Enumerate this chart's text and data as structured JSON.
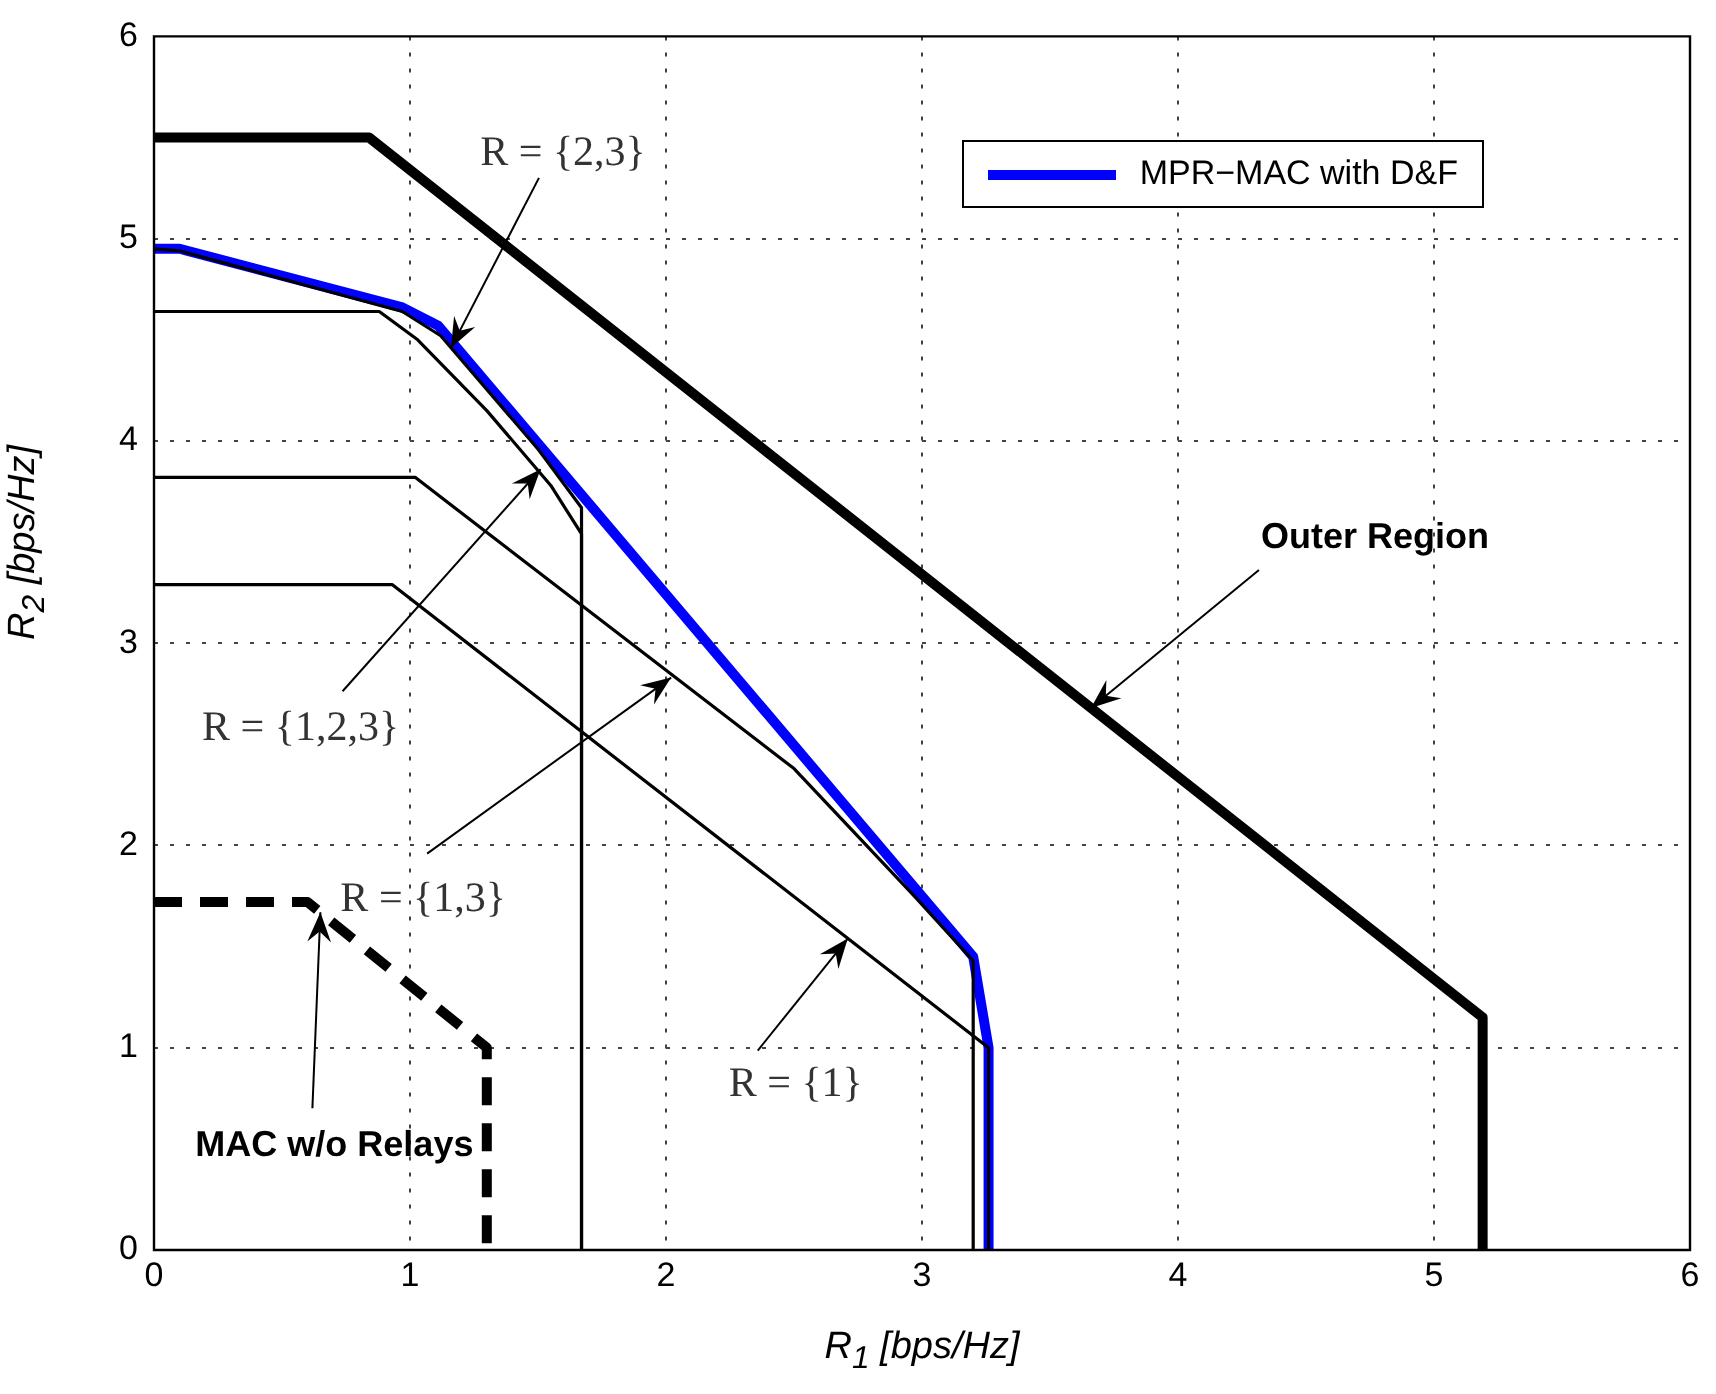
{
  "chart_data": {
    "type": "line",
    "xlabel": "R$_{1}$ [bps/Hz]",
    "ylabel": "R$_{2}$ [bps/Hz]",
    "xlim": [
      0,
      6
    ],
    "ylim": [
      0,
      6
    ],
    "xticks": [
      0,
      1,
      2,
      3,
      4,
      5,
      6
    ],
    "yticks": [
      0,
      1,
      2,
      3,
      4,
      5,
      6
    ],
    "grid": true,
    "legend": "top right",
    "marker": "none",
    "series": [
      {
        "color": "#000000",
        "line_style": "solid",
        "x": [
          0,
          0.84,
          5.19,
          5.19
        ],
        "values": [
          5.5,
          5.5,
          1.15,
          0
        ]
      },
      {
        "color": "#000000",
        "line_style": "solid",
        "x": [
          0,
          0.1,
          0.97,
          1.12,
          1.5,
          1.67,
          1.67
        ],
        "values": [
          4.95,
          4.94,
          4.64,
          4.52,
          3.96,
          3.67,
          0
        ]
      },
      {
        "color": "#000000",
        "line_style": "solid",
        "x": [
          0,
          0.88,
          1.03,
          1.3,
          1.55,
          1.67,
          1.67
        ],
        "values": [
          4.64,
          4.64,
          4.5,
          4.15,
          3.78,
          3.54,
          0
        ]
      },
      {
        "color": "#000000",
        "line_style": "solid",
        "x": [
          0,
          1.02,
          2.5,
          2.97,
          3.2,
          3.2
        ],
        "values": [
          3.82,
          3.82,
          2.38,
          1.75,
          1.43,
          0
        ]
      },
      {
        "color": "#000000",
        "line_style": "solid",
        "x": [
          0,
          0.93,
          3.26,
          3.26
        ],
        "values": [
          3.29,
          3.29,
          1.0,
          0
        ]
      },
      {
        "color": "#000000",
        "line_style": "dashed",
        "x": [
          0,
          0.6,
          1.3,
          1.3
        ],
        "values": [
          1.72,
          1.72,
          1.0,
          0
        ]
      },
      {
        "name": "MPR−MAC with D&F",
        "color": "#0000ff",
        "line_style": "solid",
        "x": [
          0,
          0.1,
          0.97,
          1.11,
          3.2,
          3.26,
          3.26
        ],
        "values": [
          4.95,
          4.95,
          4.66,
          4.57,
          1.45,
          1.0,
          0
        ]
      }
    ],
    "annotations": [
      {
        "text": "R = {2,3}",
        "x": 1.16,
        "y": 4.46
      },
      {
        "text": "R = {1,2,3}",
        "x": 1.51,
        "y": 3.86
      },
      {
        "text": "R = {1,3}",
        "x": 2.02,
        "y": 2.83
      },
      {
        "text": "R = {1}",
        "x": 2.71,
        "y": 1.54
      },
      {
        "text": "Outer Region",
        "x": 3.66,
        "y": 2.68
      },
      {
        "text": "MAC w/o Relays",
        "x": 0.65,
        "y": 1.67
      }
    ]
  }
}
